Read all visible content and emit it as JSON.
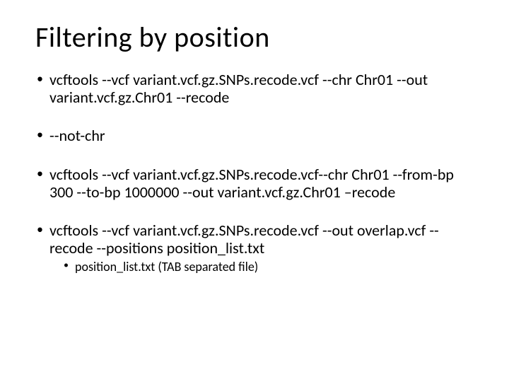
{
  "title": "Filtering by position",
  "bullets": [
    {
      "text": "vcftools --vcf variant.vcf.gz.SNPs.recode.vcf --chr Chr01 --out variant.vcf.gz.Chr01 --recode"
    },
    {
      "text": "--not-chr"
    },
    {
      "text": "vcftools --vcf variant.vcf.gz.SNPs.recode.vcf--chr Chr01 --from-bp 300 --to-bp 1000000 --out variant.vcf.gz.Chr01 –recode"
    },
    {
      "text": "vcftools --vcf variant.vcf.gz.SNPs.recode.vcf --out overlap.vcf --recode --positions position_list.txt",
      "sub": [
        "position_list.txt (TAB separated file)"
      ]
    }
  ],
  "styling": {
    "background_color": "#ffffff",
    "text_color": "#000000",
    "title_fontsize": 40,
    "body_fontsize": 22,
    "sub_fontsize": 18,
    "font_family": "Calibri",
    "slide_width": 720,
    "slide_height": 540
  }
}
